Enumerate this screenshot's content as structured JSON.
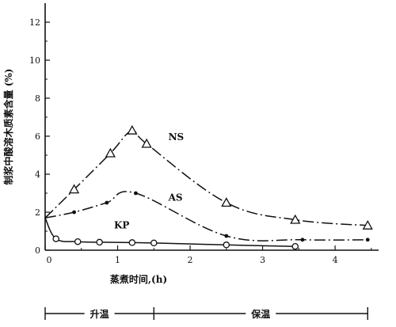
{
  "chart_data": {
    "type": "line",
    "xlabel": "蒸煮时间,(h)",
    "ylabel": "制浆中酸溶木质素含量 (%)",
    "xlim": [
      0,
      4.6
    ],
    "ylim": [
      0,
      13
    ],
    "xticks": [
      0,
      1,
      2,
      3,
      4
    ],
    "yticks": [
      0,
      2,
      4,
      6,
      8,
      10,
      12
    ],
    "grid": false,
    "series": [
      {
        "name": "NS",
        "marker": "triangle",
        "line": "dash-dot",
        "x": [
          0,
          0.4,
          0.9,
          1.2,
          1.4,
          2.5,
          3.45,
          4.45
        ],
        "y": [
          1.7,
          3.2,
          5.1,
          6.3,
          5.6,
          2.5,
          1.6,
          1.3
        ],
        "label_at": [
          1.7,
          5.8
        ]
      },
      {
        "name": "AS",
        "marker": "dot",
        "line": "dash-dot",
        "x": [
          0,
          0.4,
          0.85,
          1.25,
          2.5,
          3.55,
          4.45
        ],
        "y": [
          1.7,
          2.0,
          2.5,
          3.0,
          0.75,
          0.55,
          0.55
        ],
        "label_at": [
          1.7,
          2.6
        ]
      },
      {
        "name": "KP",
        "marker": "circle",
        "line": "solid",
        "x": [
          0,
          0.15,
          0.45,
          0.75,
          1.2,
          1.5,
          2.5,
          3.45
        ],
        "y": [
          1.7,
          0.6,
          0.45,
          0.42,
          0.4,
          0.38,
          0.28,
          0.2
        ],
        "label_at": [
          0.95,
          1.15
        ]
      }
    ],
    "phases": [
      {
        "label": "升温",
        "x_start": 0,
        "x_end": 1.5
      },
      {
        "label": "保温",
        "x_start": 1.5,
        "x_end": 4.45
      }
    ]
  }
}
